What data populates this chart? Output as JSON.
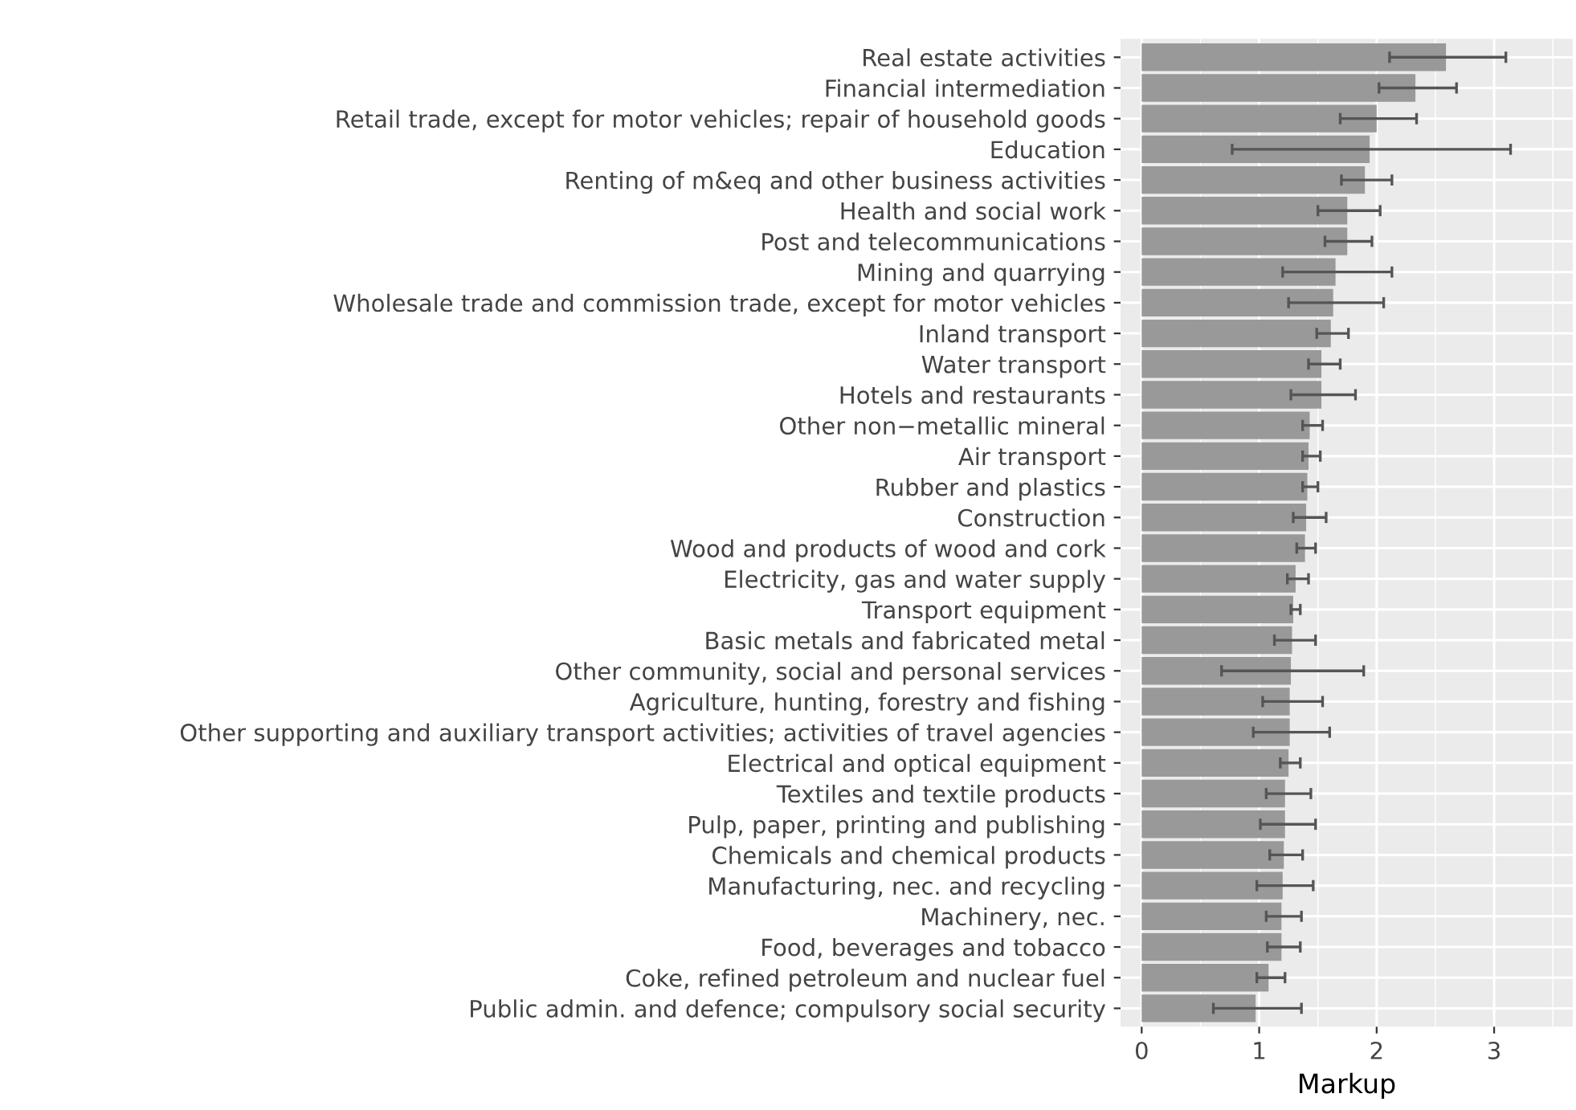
{
  "chart_data": {
    "type": "bar",
    "orientation": "horizontal",
    "xlabel": "Markup",
    "categories": [
      "Real estate activities",
      "Financial intermediation",
      "Retail trade, except for motor vehicles; repair of household goods",
      "Education",
      "Renting of m&eq and other business activities",
      "Health and social work",
      "Post and telecommunications",
      "Mining and quarrying",
      "Wholesale trade and commission trade, except for motor vehicles",
      "Inland transport",
      "Water transport",
      "Hotels and restaurants",
      "Other non−metallic mineral",
      "Air transport",
      "Rubber and plastics",
      "Construction",
      "Wood and products of wood and cork",
      "Electricity, gas and water supply",
      "Transport equipment",
      "Basic metals and fabricated metal",
      "Other community, social and personal services",
      "Agriculture, hunting, forestry and fishing",
      "Other supporting and auxiliary transport activities; activities of travel agencies",
      "Electrical and optical equipment",
      "Textiles and textile products",
      "Pulp, paper, printing and publishing",
      "Chemicals and chemical products",
      "Manufacturing, nec. and recycling",
      "Machinery, nec.",
      "Food, beverages and tobacco",
      "Coke, refined petroleum and nuclear fuel",
      "Public admin. and defence; compulsory social security"
    ],
    "values": [
      2.59,
      2.33,
      2.0,
      1.94,
      1.9,
      1.75,
      1.75,
      1.65,
      1.63,
      1.61,
      1.53,
      1.53,
      1.43,
      1.42,
      1.41,
      1.4,
      1.39,
      1.31,
      1.29,
      1.28,
      1.27,
      1.26,
      1.26,
      1.25,
      1.22,
      1.22,
      1.21,
      1.2,
      1.19,
      1.19,
      1.08,
      0.97
    ],
    "errors": [
      [
        2.11,
        3.1
      ],
      [
        2.02,
        2.68
      ],
      [
        1.69,
        2.34
      ],
      [
        0.77,
        3.14
      ],
      [
        1.7,
        2.13
      ],
      [
        1.5,
        2.03
      ],
      [
        1.56,
        1.96
      ],
      [
        1.2,
        2.13
      ],
      [
        1.25,
        2.06
      ],
      [
        1.49,
        1.76
      ],
      [
        1.42,
        1.69
      ],
      [
        1.27,
        1.82
      ],
      [
        1.37,
        1.54
      ],
      [
        1.37,
        1.52
      ],
      [
        1.37,
        1.5
      ],
      [
        1.29,
        1.57
      ],
      [
        1.32,
        1.48
      ],
      [
        1.24,
        1.42
      ],
      [
        1.27,
        1.35
      ],
      [
        1.13,
        1.48
      ],
      [
        0.68,
        1.89
      ],
      [
        1.03,
        1.54
      ],
      [
        0.95,
        1.6
      ],
      [
        1.18,
        1.35
      ],
      [
        1.06,
        1.44
      ],
      [
        1.01,
        1.48
      ],
      [
        1.09,
        1.37
      ],
      [
        0.98,
        1.46
      ],
      [
        1.06,
        1.36
      ],
      [
        1.07,
        1.35
      ],
      [
        0.98,
        1.22
      ],
      [
        0.61,
        1.36
      ]
    ],
    "color": "#999999",
    "xlim": [
      -0.18,
      3.67
    ],
    "xticks": [
      0,
      1,
      2,
      3
    ],
    "grid": true
  }
}
